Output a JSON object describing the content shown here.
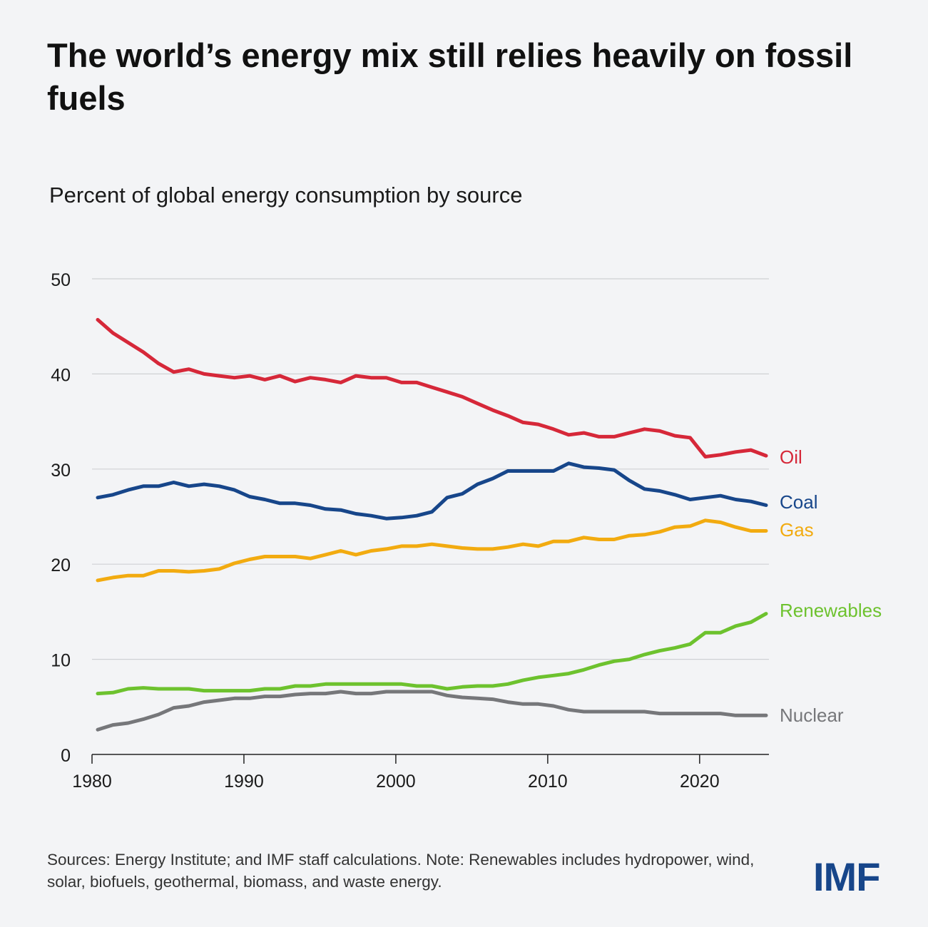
{
  "header": {
    "title": "The world’s energy mix still relies heavily on fossil fuels",
    "subtitle": "Percent of global energy consumption by source"
  },
  "footer": {
    "note": "Sources: Energy Institute; and IMF staff calculations. Note: Renewables includes hydropower, wind, solar, biofuels, geothermal, biomass, and waste energy.",
    "logo_text": "IMF"
  },
  "chart_data": {
    "type": "line",
    "title": "The world’s energy mix still relies heavily on fossil fuels",
    "subtitle": "Percent of global energy consumption by source",
    "xlabel": "",
    "ylabel": "",
    "xlim": [
      1980,
      2024
    ],
    "ylim": [
      0,
      50
    ],
    "xticks": [
      1980,
      1990,
      2000,
      2010,
      2020
    ],
    "yticks": [
      0,
      10,
      20,
      30,
      40,
      50
    ],
    "grid": "horizontal",
    "legend": "direct-labels-right",
    "x": [
      1980,
      1981,
      1982,
      1983,
      1984,
      1985,
      1986,
      1987,
      1988,
      1989,
      1990,
      1991,
      1992,
      1993,
      1994,
      1995,
      1996,
      1997,
      1998,
      1999,
      2000,
      2001,
      2002,
      2003,
      2004,
      2005,
      2006,
      2007,
      2008,
      2009,
      2010,
      2011,
      2012,
      2013,
      2014,
      2015,
      2016,
      2017,
      2018,
      2019,
      2020,
      2021,
      2022,
      2023,
      2024
    ],
    "series": [
      {
        "name": "Oil",
        "color": "#d62839",
        "values": [
          45.7,
          44.3,
          43.3,
          42.3,
          41.1,
          40.2,
          40.5,
          40.0,
          39.8,
          39.6,
          39.8,
          39.4,
          39.8,
          39.2,
          39.6,
          39.4,
          39.1,
          39.8,
          39.6,
          39.6,
          39.1,
          39.1,
          38.6,
          38.1,
          37.6,
          36.9,
          36.2,
          35.6,
          34.9,
          34.7,
          34.2,
          33.6,
          33.8,
          33.4,
          33.4,
          33.8,
          34.2,
          34.0,
          33.5,
          33.3,
          31.3,
          31.5,
          31.8,
          32.0,
          31.4
        ]
      },
      {
        "name": "Coal",
        "color": "#17468a",
        "values": [
          27.0,
          27.3,
          27.8,
          28.2,
          28.2,
          28.6,
          28.2,
          28.4,
          28.2,
          27.8,
          27.1,
          26.8,
          26.4,
          26.4,
          26.2,
          25.8,
          25.7,
          25.3,
          25.1,
          24.8,
          24.9,
          25.1,
          25.5,
          27.0,
          27.4,
          28.4,
          29.0,
          29.8,
          29.8,
          29.8,
          29.8,
          30.6,
          30.2,
          30.1,
          29.9,
          28.8,
          27.9,
          27.7,
          27.3,
          26.8,
          27.0,
          27.2,
          26.8,
          26.6,
          26.2
        ]
      },
      {
        "name": "Gas",
        "color": "#f2ab10",
        "values": [
          18.3,
          18.6,
          18.8,
          18.8,
          19.3,
          19.3,
          19.2,
          19.3,
          19.5,
          20.1,
          20.5,
          20.8,
          20.8,
          20.8,
          20.6,
          21.0,
          21.4,
          21.0,
          21.4,
          21.6,
          21.9,
          21.9,
          22.1,
          21.9,
          21.7,
          21.6,
          21.6,
          21.8,
          22.1,
          21.9,
          22.4,
          22.4,
          22.8,
          22.6,
          22.6,
          23.0,
          23.1,
          23.4,
          23.9,
          24.0,
          24.6,
          24.4,
          23.9,
          23.5,
          23.5
        ]
      },
      {
        "name": "Renewables",
        "color": "#6dc22e",
        "values": [
          6.4,
          6.5,
          6.9,
          7.0,
          6.9,
          6.9,
          6.9,
          6.7,
          6.7,
          6.7,
          6.7,
          6.9,
          6.9,
          7.2,
          7.2,
          7.4,
          7.4,
          7.4,
          7.4,
          7.4,
          7.4,
          7.2,
          7.2,
          6.9,
          7.1,
          7.2,
          7.2,
          7.4,
          7.8,
          8.1,
          8.3,
          8.5,
          8.9,
          9.4,
          9.8,
          10.0,
          10.5,
          10.9,
          11.2,
          11.6,
          12.8,
          12.8,
          13.5,
          13.9,
          14.8
        ]
      },
      {
        "name": "Nuclear",
        "color": "#76777a",
        "values": [
          2.6,
          3.1,
          3.3,
          3.7,
          4.2,
          4.9,
          5.1,
          5.5,
          5.7,
          5.9,
          5.9,
          6.1,
          6.1,
          6.3,
          6.4,
          6.4,
          6.6,
          6.4,
          6.4,
          6.6,
          6.6,
          6.6,
          6.6,
          6.2,
          6.0,
          5.9,
          5.8,
          5.5,
          5.3,
          5.3,
          5.1,
          4.7,
          4.5,
          4.5,
          4.5,
          4.5,
          4.5,
          4.3,
          4.3,
          4.3,
          4.3,
          4.3,
          4.1,
          4.1,
          4.1
        ]
      }
    ]
  }
}
